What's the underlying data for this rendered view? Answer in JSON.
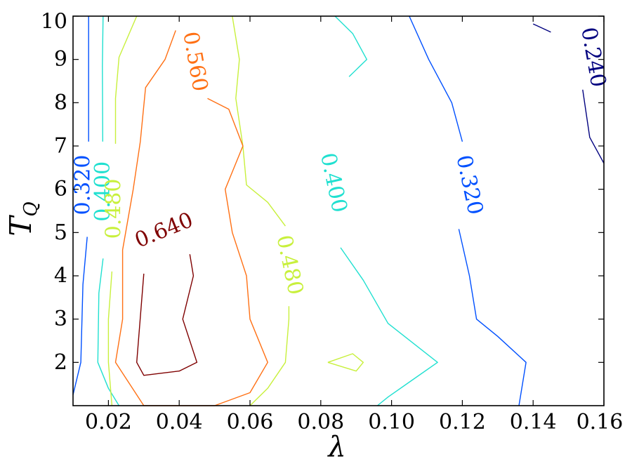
{
  "chart_data": {
    "type": "contour",
    "xlabel": "λ",
    "ylabel_main": "T",
    "ylabel_sub": "Q",
    "xlim": [
      0.01,
      0.16
    ],
    "ylim": [
      1.0,
      10.0
    ],
    "xticks": [
      0.02,
      0.04,
      0.06,
      0.08,
      0.1,
      0.12,
      0.14,
      0.16
    ],
    "xtick_labels": [
      "0.02",
      "0.04",
      "0.06",
      "0.08",
      "0.10",
      "0.12",
      "0.14",
      "0.16"
    ],
    "yticks": [
      2,
      3,
      4,
      5,
      6,
      7,
      8,
      9,
      10
    ],
    "ytick_labels": [
      "2",
      "3",
      "4",
      "5",
      "6",
      "7",
      "8",
      "9",
      "10"
    ],
    "levels": [
      {
        "value": 0.24,
        "color": "#00007f",
        "paths": [
          [
            [
              0.14,
              9.82
            ],
            [
              0.145,
              9.63
            ]
          ],
          [
            [
              0.154,
              8.3
            ],
            [
              0.156,
              7.2
            ],
            [
              0.16,
              6.6
            ]
          ]
        ],
        "labels": [
          {
            "text": "0.240",
            "x": 0.157,
            "y": 9.05,
            "rotate": 80,
            "size": 30
          }
        ]
      },
      {
        "value": 0.32,
        "color": "#0050ff",
        "paths": [
          [
            [
              0.0144,
              10.0
            ],
            [
              0.0144,
              7.1
            ]
          ],
          [
            [
              0.014,
              4.9
            ],
            [
              0.0128,
              3.8
            ],
            [
              0.0122,
              2.0
            ],
            [
              0.01,
              1.25
            ]
          ],
          [
            [
              0.105,
              10.0
            ],
            [
              0.1105,
              9.0
            ],
            [
              0.117,
              8.0
            ],
            [
              0.12,
              7.1
            ]
          ],
          [
            [
              0.119,
              5.08
            ],
            [
              0.122,
              4.0
            ],
            [
              0.124,
              3.0
            ],
            [
              0.13,
              2.6
            ],
            [
              0.138,
              2.0
            ],
            [
              0.136,
              1.0
            ]
          ]
        ],
        "labels": [
          {
            "text": "0.320",
            "x": 0.0128,
            "y": 6.1,
            "rotate": -90,
            "size": 30
          },
          {
            "text": "0.320",
            "x": 0.122,
            "y": 6.1,
            "rotate": 78,
            "size": 30
          }
        ]
      },
      {
        "value": 0.4,
        "color": "#20e0d0",
        "paths": [
          [
            [
              0.0185,
              10.0
            ],
            [
              0.0183,
              8.85
            ],
            [
              0.0184,
              7.1
            ]
          ],
          [
            [
              0.0185,
              4.4
            ],
            [
              0.0173,
              3.6
            ],
            [
              0.017,
              2.0
            ],
            [
              0.02,
              1.4
            ],
            [
              0.023,
              1.0
            ]
          ],
          [
            [
              0.084,
              10.0
            ],
            [
              0.089,
              9.6
            ],
            [
              0.093,
              9.0
            ],
            [
              0.088,
              8.6
            ]
          ],
          [
            [
              0.0856,
              4.65
            ],
            [
              0.092,
              3.9
            ],
            [
              0.099,
              2.9
            ],
            [
              0.113,
              2.0
            ],
            [
              0.106,
              1.6
            ],
            [
              0.099,
              1.2
            ],
            [
              0.096,
              1.0
            ]
          ]
        ],
        "labels": [
          {
            "text": "0.400",
            "x": 0.0184,
            "y": 5.95,
            "rotate": -90,
            "size": 30
          },
          {
            "text": "0.400",
            "x": 0.0836,
            "y": 6.15,
            "rotate": 78,
            "size": 30
          }
        ]
      },
      {
        "value": 0.48,
        "color": "#c8f03c",
        "paths": [
          [
            [
              0.028,
              10.0
            ],
            [
              0.023,
              9.05
            ],
            [
              0.022,
              8.1
            ],
            [
              0.022,
              7.05
            ]
          ],
          [
            [
              0.021,
              4.1
            ],
            [
              0.02,
              3.0
            ],
            [
              0.02,
              2.0
            ],
            [
              0.021,
              1.0
            ]
          ],
          [
            [
              0.055,
              10.0
            ],
            [
              0.057,
              9.0
            ],
            [
              0.056,
              8.1
            ],
            [
              0.058,
              7.0
            ],
            [
              0.059,
              6.1
            ],
            [
              0.065,
              5.7
            ],
            [
              0.07,
              5.15
            ]
          ],
          [
            [
              0.071,
              3.3
            ],
            [
              0.071,
              3.0
            ],
            [
              0.07,
              2.0
            ],
            [
              0.065,
              1.4
            ],
            [
              0.06,
              1.0
            ]
          ],
          [
            [
              0.082,
              2.0
            ],
            [
              0.089,
              2.2
            ],
            [
              0.092,
              2.0
            ],
            [
              0.09,
              1.8
            ],
            [
              0.082,
              2.0
            ]
          ]
        ],
        "labels": [
          {
            "text": "0.480",
            "x": 0.0215,
            "y": 5.55,
            "rotate": -90,
            "size": 30
          },
          {
            "text": "0.480",
            "x": 0.0712,
            "y": 4.25,
            "rotate": 78,
            "size": 30
          }
        ]
      },
      {
        "value": 0.56,
        "color": "#ff7014",
        "paths": [
          [
            [
              0.039,
              9.67
            ],
            [
              0.036,
              9.0
            ],
            [
              0.0305,
              8.35
            ],
            [
              0.029,
              7.1
            ],
            [
              0.027,
              6.0
            ],
            [
              0.024,
              4.6
            ],
            [
              0.024,
              3.0
            ],
            [
              0.022,
              2.0
            ],
            [
              0.03,
              1.0
            ],
            [
              0.05,
              1.0
            ],
            [
              0.06,
              1.3
            ],
            [
              0.065,
              2.0
            ],
            [
              0.06,
              3.0
            ],
            [
              0.059,
              4.0
            ],
            [
              0.055,
              5.0
            ],
            [
              0.053,
              6.0
            ],
            [
              0.058,
              7.0
            ],
            [
              0.054,
              7.85
            ],
            [
              0.048,
              8.1
            ]
          ]
        ],
        "labels": [
          {
            "text": "0.560",
            "x": 0.0445,
            "y": 8.95,
            "rotate": 80,
            "size": 30
          }
        ]
      },
      {
        "value": 0.64,
        "color": "#7f0000",
        "paths": [
          [
            [
              0.03,
              4.05
            ],
            [
              0.028,
              2.0
            ],
            [
              0.03,
              1.7
            ],
            [
              0.04,
              1.8
            ],
            [
              0.045,
              2.0
            ],
            [
              0.041,
              3.0
            ],
            [
              0.044,
              4.0
            ],
            [
              0.043,
              4.5
            ]
          ]
        ],
        "labels": [
          {
            "text": "0.640",
            "x": 0.0357,
            "y": 5.05,
            "rotate": -22,
            "size": 30
          }
        ]
      }
    ]
  }
}
